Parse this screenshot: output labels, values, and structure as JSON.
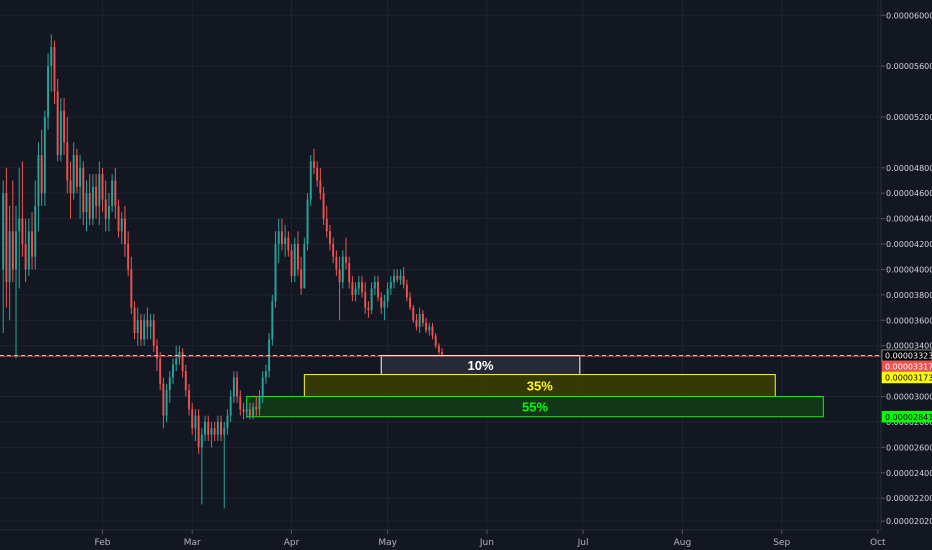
{
  "chart_data": {
    "type": "candlestick",
    "title": "",
    "xlabel": "",
    "ylabel": "",
    "grid": true,
    "colors": {
      "background": "#131722",
      "grid": "#1f2333",
      "up": "#26a69a",
      "down": "#ef5350",
      "axis_text": "#d1d4dc",
      "last_price": "#ef5350",
      "zone_10": "#ffffff",
      "zone_35": "#ffff00",
      "zone_55": "#00ff00"
    },
    "y_axis": {
      "ylim": [
        1.95e-05,
        6.12e-05
      ],
      "ticks": [
        "0.00006000",
        "0.00005600",
        "0.00005200",
        "0.00004800",
        "0.00004600",
        "0.00004400",
        "0.00004200",
        "0.00004000",
        "0.00003800",
        "0.00003600",
        "0.00003400",
        "0.00003000",
        "0.00002800",
        "0.00002600",
        "0.00002400",
        "0.00002200",
        "0.00002020"
      ]
    },
    "x_axis": {
      "range_days": [
        -1,
        274
      ],
      "ticks": [
        {
          "label": "Feb",
          "day": 31
        },
        {
          "label": "Mar",
          "day": 59
        },
        {
          "label": "Apr",
          "day": 90
        },
        {
          "label": "May",
          "day": 120
        },
        {
          "label": "Jun",
          "day": 151
        },
        {
          "label": "Jul",
          "day": 181
        },
        {
          "label": "Aug",
          "day": 212
        },
        {
          "label": "Sep",
          "day": 243
        },
        {
          "label": "Oct",
          "day": 273
        }
      ]
    },
    "candle_start_day": 0,
    "candles": [
      [
        4e-05,
        4.7e-05,
        3.5e-05,
        4.6e-05
      ],
      [
        4.6e-05,
        4.8e-05,
        3.7e-05,
        3.9e-05
      ],
      [
        3.9e-05,
        4.5e-05,
        3.6e-05,
        4.3e-05
      ],
      [
        4.3e-05,
        4.7e-05,
        3.9e-05,
        4e-05
      ],
      [
        4e-05,
        4.5e-05,
        3.3e-05,
        4.3e-05
      ],
      [
        4.3e-05,
        4.8e-05,
        3.85e-05,
        4.4e-05
      ],
      [
        4.4e-05,
        4.85e-05,
        4.1e-05,
        4.2e-05
      ],
      [
        4.2e-05,
        4.4e-05,
        3.9e-05,
        4e-05
      ],
      [
        4e-05,
        4.4e-05,
        3.95e-05,
        4.3e-05
      ],
      [
        4.3e-05,
        4.45e-05,
        4e-05,
        4.1e-05
      ],
      [
        4.1e-05,
        4.7e-05,
        4e-05,
        4.5e-05
      ],
      [
        4.5e-05,
        5e-05,
        4.3e-05,
        4.9e-05
      ],
      [
        4.9e-05,
        5.1e-05,
        4.5e-05,
        4.6e-05
      ],
      [
        4.6e-05,
        5.25e-05,
        4.5e-05,
        5.2e-05
      ],
      [
        5.2e-05,
        5.7e-05,
        5.1e-05,
        5.6e-05
      ],
      [
        5.6e-05,
        5.85e-05,
        5.4e-05,
        5.75e-05
      ],
      [
        5.75e-05,
        5.8e-05,
        5.3e-05,
        5.4e-05
      ],
      [
        5.4e-05,
        5.5e-05,
        4.85e-05,
        4.9e-05
      ],
      [
        4.9e-05,
        5.35e-05,
        4.85e-05,
        5.25e-05
      ],
      [
        5.25e-05,
        5.35e-05,
        4.9e-05,
        5e-05
      ],
      [
        5e-05,
        5.2e-05,
        4.6e-05,
        4.7e-05
      ],
      [
        4.7e-05,
        4.85e-05,
        4.4e-05,
        4.6e-05
      ],
      [
        4.6e-05,
        5e-05,
        4.55e-05,
        4.9e-05
      ],
      [
        4.9e-05,
        4.95e-05,
        4.6e-05,
        4.65e-05
      ],
      [
        4.65e-05,
        4.9e-05,
        4.4e-05,
        4.8e-05
      ],
      [
        4.8e-05,
        4.85e-05,
        4.35e-05,
        4.45e-05
      ],
      [
        4.45e-05,
        4.7e-05,
        4.3e-05,
        4.6e-05
      ],
      [
        4.6e-05,
        4.75e-05,
        4.35e-05,
        4.4e-05
      ],
      [
        4.4e-05,
        4.75e-05,
        4.35e-05,
        4.65e-05
      ],
      [
        4.65e-05,
        4.75e-05,
        4.4e-05,
        4.5e-05
      ],
      [
        4.5e-05,
        4.85e-05,
        4.35e-05,
        4.75e-05
      ],
      [
        4.75e-05,
        4.8e-05,
        4.45e-05,
        4.55e-05
      ],
      [
        4.55e-05,
        4.7e-05,
        4.3e-05,
        4.4e-05
      ],
      [
        4.4e-05,
        4.6e-05,
        4.3e-05,
        4.5e-05
      ],
      [
        4.5e-05,
        4.75e-05,
        4.45e-05,
        4.7e-05
      ],
      [
        4.7e-05,
        4.8e-05,
        4.4e-05,
        4.5e-05
      ],
      [
        4.5e-05,
        4.55e-05,
        4.25e-05,
        4.3e-05
      ],
      [
        4.3e-05,
        4.45e-05,
        4.2e-05,
        4.4e-05
      ],
      [
        4.4e-05,
        4.5e-05,
        4.1e-05,
        4.2e-05
      ],
      [
        4.2e-05,
        4.3e-05,
        3.95e-05,
        4e-05
      ],
      [
        4e-05,
        4.1e-05,
        3.65e-05,
        3.7e-05
      ],
      [
        3.7e-05,
        3.75e-05,
        3.45e-05,
        3.5e-05
      ],
      [
        3.5e-05,
        3.7e-05,
        3.4e-05,
        3.6e-05
      ],
      [
        3.6e-05,
        3.65e-05,
        3.4e-05,
        3.45e-05
      ],
      [
        3.45e-05,
        3.65e-05,
        3.4e-05,
        3.6e-05
      ],
      [
        3.6e-05,
        3.7e-05,
        3.45e-05,
        3.55e-05
      ],
      [
        3.55e-05,
        3.65e-05,
        3.45e-05,
        3.6e-05
      ],
      [
        3.6e-05,
        3.65e-05,
        3.35e-05,
        3.4e-05
      ],
      [
        3.4e-05,
        3.45e-05,
        3.2e-05,
        3.3e-05
      ],
      [
        3.3e-05,
        3.35e-05,
        3.05e-05,
        3.1e-05
      ],
      [
        3.1e-05,
        3.15e-05,
        2.75e-05,
        2.85e-05
      ],
      [
        2.85e-05,
        3.1e-05,
        2.8e-05,
        3.05e-05
      ],
      [
        3.05e-05,
        3.2e-05,
        2.95e-05,
        3.15e-05
      ],
      [
        3.15e-05,
        3.3e-05,
        3.1e-05,
        3.25e-05
      ],
      [
        3.25e-05,
        3.4e-05,
        3.2e-05,
        3.3e-05
      ],
      [
        3.3e-05,
        3.4e-05,
        3.25e-05,
        3.35e-05
      ],
      [
        3.35e-05,
        3.38e-05,
        3.15e-05,
        3.2e-05
      ],
      [
        3.2e-05,
        3.25e-05,
        3e-05,
        3.05e-05
      ],
      [
        3.05e-05,
        3.1e-05,
        2.85e-05,
        2.9e-05
      ],
      [
        2.9e-05,
        2.95e-05,
        2.7e-05,
        2.75e-05
      ],
      [
        2.75e-05,
        2.9e-05,
        2.65e-05,
        2.85e-05
      ],
      [
        2.85e-05,
        2.9e-05,
        2.55e-05,
        2.6e-05
      ],
      [
        2.6e-05,
        2.75e-05,
        2.15e-05,
        2.7e-05
      ],
      [
        2.7e-05,
        2.85e-05,
        2.65e-05,
        2.8e-05
      ],
      [
        2.8e-05,
        2.85e-05,
        2.65e-05,
        2.7e-05
      ],
      [
        2.7e-05,
        2.8e-05,
        2.6e-05,
        2.75e-05
      ],
      [
        2.75e-05,
        2.8e-05,
        2.65e-05,
        2.7e-05
      ],
      [
        2.7e-05,
        2.85e-05,
        2.65e-05,
        2.8e-05
      ],
      [
        2.8e-05,
        2.85e-05,
        2.65e-05,
        2.7e-05
      ],
      [
        2.7e-05,
        2.8e-05,
        2.12e-05,
        2.75e-05
      ],
      [
        2.75e-05,
        2.9e-05,
        2.7e-05,
        2.85e-05
      ],
      [
        2.85e-05,
        3.05e-05,
        2.8e-05,
        3e-05
      ],
      [
        3e-05,
        3.2e-05,
        2.95e-05,
        3.15e-05
      ],
      [
        3.15e-05,
        3.2e-05,
        2.95e-05,
        3e-05
      ],
      [
        3e-05,
        3.05e-05,
        2.85e-05,
        2.9e-05
      ],
      [
        2.9e-05,
        2.95e-05,
        2.82e-05,
        2.88e-05
      ],
      [
        2.88e-05,
        2.95e-05,
        2.83e-05,
        2.9e-05
      ],
      [
        2.9e-05,
        2.95e-05,
        2.82e-05,
        2.85e-05
      ],
      [
        2.85e-05,
        2.95e-05,
        2.82e-05,
        2.92e-05
      ],
      [
        2.92e-05,
        3e-05,
        2.85e-05,
        2.9e-05
      ],
      [
        2.9e-05,
        3.05e-05,
        2.85e-05,
        3e-05
      ],
      [
        3e-05,
        3.2e-05,
        2.95e-05,
        3.15e-05
      ],
      [
        3.15e-05,
        3.25e-05,
        3.1e-05,
        3.2e-05
      ],
      [
        3.2e-05,
        3.5e-05,
        3.15e-05,
        3.45e-05
      ],
      [
        3.45e-05,
        3.8e-05,
        3.4e-05,
        3.75e-05
      ],
      [
        3.75e-05,
        4.3e-05,
        3.7e-05,
        4.2e-05
      ],
      [
        4.2e-05,
        4.4e-05,
        4.05e-05,
        4.3e-05
      ],
      [
        4.3e-05,
        4.4e-05,
        4.15e-05,
        4.2e-05
      ],
      [
        4.2e-05,
        4.35e-05,
        4.1e-05,
        4.25e-05
      ],
      [
        4.25e-05,
        4.3e-05,
        4.1e-05,
        4.15e-05
      ],
      [
        4.15e-05,
        4.2e-05,
        3.9e-05,
        3.95e-05
      ],
      [
        3.95e-05,
        4.25e-05,
        3.9e-05,
        4.2e-05
      ],
      [
        4.2e-05,
        4.3e-05,
        3.95e-05,
        4e-05
      ],
      [
        4e-05,
        4.1e-05,
        3.8e-05,
        3.85e-05
      ],
      [
        3.85e-05,
        4.25e-05,
        3.85e-05,
        4.2e-05
      ],
      [
        4.2e-05,
        4.6e-05,
        4.15e-05,
        4.55e-05
      ],
      [
        4.55e-05,
        4.9e-05,
        4.5e-05,
        4.85e-05
      ],
      [
        4.85e-05,
        4.95e-05,
        4.75e-05,
        4.8e-05
      ],
      [
        4.8e-05,
        4.85e-05,
        4.65e-05,
        4.7e-05
      ],
      [
        4.7e-05,
        4.8e-05,
        4.55e-05,
        4.6e-05
      ],
      [
        4.6e-05,
        4.65e-05,
        4.35e-05,
        4.4e-05
      ],
      [
        4.4e-05,
        4.5e-05,
        4.25e-05,
        4.3e-05
      ],
      [
        4.3e-05,
        4.35e-05,
        4.15e-05,
        4.2e-05
      ],
      [
        4.2e-05,
        4.25e-05,
        4.05e-05,
        4.1e-05
      ],
      [
        4.1e-05,
        4.15e-05,
        3.95e-05,
        4e-05
      ],
      [
        4e-05,
        4.1e-05,
        3.6e-05,
        3.9e-05
      ],
      [
        3.9e-05,
        4.15e-05,
        3.85e-05,
        4.1e-05
      ],
      [
        4.1e-05,
        4.25e-05,
        4e-05,
        4.05e-05
      ],
      [
        4.05e-05,
        4.1e-05,
        3.85e-05,
        3.9e-05
      ],
      [
        3.9e-05,
        3.95e-05,
        3.75e-05,
        3.8e-05
      ],
      [
        3.8e-05,
        3.9e-05,
        3.75e-05,
        3.85e-05
      ],
      [
        3.85e-05,
        3.95e-05,
        3.8e-05,
        3.9e-05
      ],
      [
        3.9e-05,
        3.95e-05,
        3.78e-05,
        3.82e-05
      ],
      [
        3.82e-05,
        3.9e-05,
        3.65e-05,
        3.7e-05
      ],
      [
        3.7e-05,
        3.75e-05,
        3.62e-05,
        3.68e-05
      ],
      [
        3.68e-05,
        3.9e-05,
        3.65e-05,
        3.85e-05
      ],
      [
        3.85e-05,
        3.95e-05,
        3.8e-05,
        3.9e-05
      ],
      [
        3.9e-05,
        3.95e-05,
        3.75e-05,
        3.78e-05
      ],
      [
        3.78e-05,
        3.82e-05,
        3.65e-05,
        3.7e-05
      ],
      [
        3.7e-05,
        3.8e-05,
        3.6e-05,
        3.75e-05
      ],
      [
        3.75e-05,
        3.9e-05,
        3.7e-05,
        3.85e-05
      ],
      [
        3.85e-05,
        3.95e-05,
        3.8e-05,
        3.9e-05
      ],
      [
        3.9e-05,
        4e-05,
        3.85e-05,
        3.95e-05
      ],
      [
        3.95e-05,
        4e-05,
        3.9e-05,
        3.92e-05
      ],
      [
        3.92e-05,
        4e-05,
        3.88e-05,
        3.95e-05
      ],
      [
        3.95e-05,
        4.02e-05,
        3.85e-05,
        3.88e-05
      ],
      [
        3.88e-05,
        3.92e-05,
        3.75e-05,
        3.78e-05
      ],
      [
        3.78e-05,
        3.82e-05,
        3.68e-05,
        3.7e-05
      ],
      [
        3.7e-05,
        3.72e-05,
        3.58e-05,
        3.6e-05
      ],
      [
        3.6e-05,
        3.65e-05,
        3.52e-05,
        3.55e-05
      ],
      [
        3.55e-05,
        3.7e-05,
        3.5e-05,
        3.65e-05
      ],
      [
        3.65e-05,
        3.68e-05,
        3.55e-05,
        3.58e-05
      ],
      [
        3.58e-05,
        3.62e-05,
        3.5e-05,
        3.52e-05
      ],
      [
        3.52e-05,
        3.58e-05,
        3.48e-05,
        3.55e-05
      ],
      [
        3.55e-05,
        3.58e-05,
        3.45e-05,
        3.48e-05
      ],
      [
        3.48e-05,
        3.5e-05,
        3.38e-05,
        3.4e-05
      ],
      [
        3.4e-05,
        3.42e-05,
        3.33e-05,
        3.35e-05
      ],
      [
        3.35e-05,
        3.38e-05,
        3.31e-05,
        3.317e-05
      ]
    ],
    "price_lines": [
      {
        "label": "0.00003323",
        "value": 3.323e-05,
        "color": "#ffffff",
        "dash": true,
        "tag_bg": "#000000"
      },
      {
        "label": "0.00003317",
        "value": 3.317e-05,
        "color": "#ef5350",
        "dash": false,
        "tag_bg": "#ef5350"
      }
    ],
    "zones": [
      {
        "label": "10%",
        "color": "#ffffff",
        "fill": "#2a2e39",
        "top": 3.323e-05,
        "bottom": 3.173e-05,
        "day_start": 118,
        "day_end": 180,
        "tag": ""
      },
      {
        "label": "35%",
        "color": "#ffff00",
        "fill": "#3b4000",
        "top": 3.173e-05,
        "bottom": 3e-05,
        "day_start": 94,
        "day_end": 241,
        "tag": "0.00003173",
        "tag_bg": "#ffff00",
        "tag_fg": "#000000"
      },
      {
        "label": "55%",
        "color": "#00ff00",
        "fill": "#123d16",
        "top": 3e-05,
        "bottom": 2.841e-05,
        "day_start": 76,
        "day_end": 256,
        "tag": "0.00002841",
        "tag_bg": "#00ff00",
        "tag_fg": "#000000"
      }
    ]
  }
}
